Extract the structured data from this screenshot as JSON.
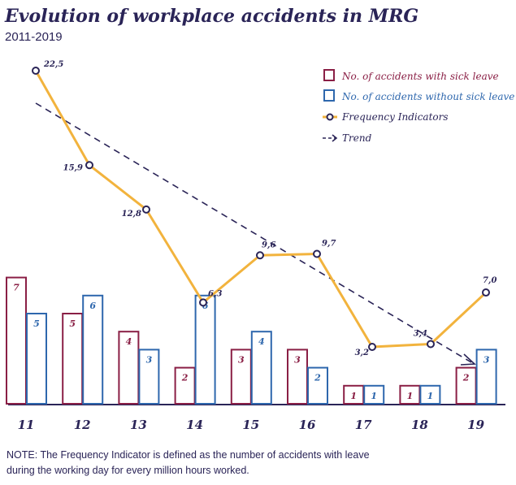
{
  "chart_data": {
    "type": "bar+line",
    "title": "Evolution of workplace accidents in MRG",
    "subtitle": "2011-2019",
    "categories": [
      "11",
      "12",
      "13",
      "14",
      "15",
      "16",
      "17",
      "18",
      "19"
    ],
    "series": [
      {
        "name": "No. of accidents with sick leave",
        "type": "bar",
        "color": "#8a1f45",
        "values": [
          7,
          5,
          4,
          2,
          3,
          3,
          1,
          1,
          2
        ],
        "labels": [
          "7",
          "5",
          "4",
          "2",
          "3",
          "3",
          "1",
          "1",
          "2"
        ]
      },
      {
        "name": "No. of accidents without sick leave",
        "type": "bar",
        "color": "#2e67ad",
        "values": [
          5,
          6,
          3,
          6,
          4,
          2,
          1,
          1,
          3
        ],
        "labels": [
          "5",
          "6",
          "3",
          "6",
          "4",
          "2",
          "1",
          "1",
          "3"
        ]
      },
      {
        "name": "Frequency Indicators",
        "type": "line",
        "color": "#f2b33d",
        "values": [
          22.5,
          15.9,
          12.8,
          6.3,
          9.6,
          9.7,
          3.2,
          3.4,
          7.0
        ],
        "labels": [
          "22,5",
          "15,9",
          "12,8",
          "6,3",
          "9,6",
          "9,7",
          "3,2",
          "3,4",
          "7,0"
        ]
      }
    ],
    "trend": {
      "name": "Trend",
      "color": "#2a2457",
      "style": "dashed-arrow"
    },
    "legend_position": "top-right",
    "xlabel": "",
    "ylabel": ""
  },
  "note": {
    "line1": "NOTE: The Frequency Indicator is defined as the number of accidents with leave",
    "line2": "during the working day for every million hours worked."
  }
}
